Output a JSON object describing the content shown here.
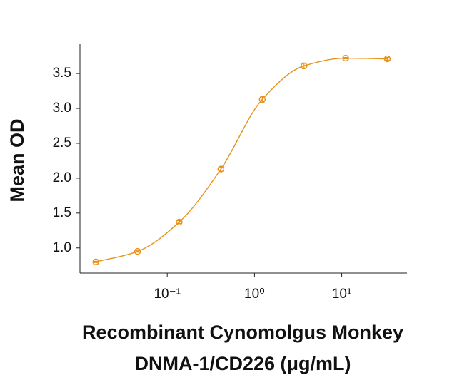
{
  "chart_data": {
    "type": "scatter",
    "x": [
      0.0152,
      0.0457,
      0.137,
      0.412,
      1.23,
      3.7,
      11.1,
      33.3
    ],
    "series": [
      {
        "color": "#e8921c",
        "values": [
          0.8,
          0.95,
          1.37,
          2.13,
          3.13,
          3.61,
          3.72,
          3.71
        ],
        "errors": [
          0.01,
          0.01,
          0.02,
          0.03,
          0.04,
          0.04,
          0.01,
          0.02
        ]
      }
    ],
    "x_log": true,
    "xlim": [
      0.01,
      56
    ],
    "xticks": [
      {
        "value": 0.1,
        "label": "10⁻¹"
      },
      {
        "value": 1,
        "label": "10⁰"
      },
      {
        "value": 10,
        "label": "10¹"
      }
    ],
    "ylim": [
      0.64,
      3.92
    ],
    "yticks": [
      {
        "value": 1,
        "label": "1.0"
      },
      1.5,
      {
        "value": 2,
        "label": "2.0"
      },
      2.5,
      {
        "value": 3,
        "label": "3.0"
      },
      3.5
    ],
    "x_label": [
      "Recombinant Cynomolgus Monkey",
      "DNMA-1/CD226 (μg/mL)"
    ],
    "y_label": "Mean OD"
  }
}
